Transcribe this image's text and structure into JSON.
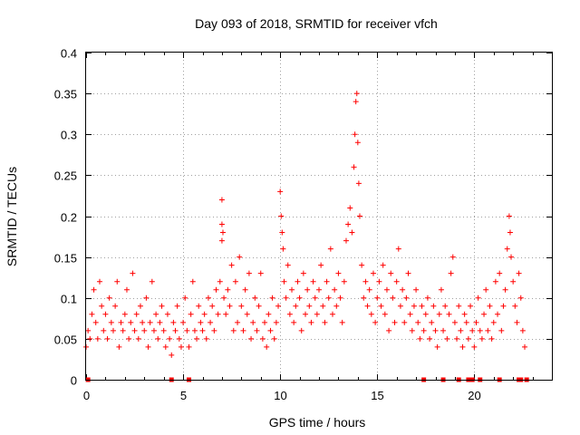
{
  "chart_data": {
    "type": "scatter",
    "title": "Day 093 of 2018, SRMTID for receiver vfch",
    "xlabel": "GPS time / hours",
    "ylabel": "SRMTID / TECUs",
    "xlim": [
      0,
      24
    ],
    "ylim": [
      0,
      0.4
    ],
    "grid": true,
    "x_ticks": [
      0,
      5,
      10,
      15,
      20
    ],
    "x_tick_labels": [
      "0",
      "5",
      "10",
      "15",
      "20"
    ],
    "y_ticks": [
      0,
      0.05,
      0.1,
      0.15,
      0.2,
      0.25,
      0.3,
      0.35,
      0.4
    ],
    "y_tick_labels": [
      "0",
      "0.05",
      "0.1",
      "0.15",
      "0.2",
      "0.25",
      "0.3",
      "0.35",
      "0.4"
    ],
    "marker": "plus",
    "color": "#ff0000",
    "series": [
      {
        "name": "SRMTID",
        "points": [
          [
            0.0,
            0.04
          ],
          [
            0.1,
            0.06
          ],
          [
            0.2,
            0.05
          ],
          [
            0.3,
            0.08
          ],
          [
            0.4,
            0.11
          ],
          [
            0.5,
            0.07
          ],
          [
            0.6,
            0.05
          ],
          [
            0.7,
            0.12
          ],
          [
            0.8,
            0.09
          ],
          [
            0.9,
            0.06
          ],
          [
            1.0,
            0.08
          ],
          [
            1.1,
            0.05
          ],
          [
            1.2,
            0.1
          ],
          [
            1.3,
            0.07
          ],
          [
            1.4,
            0.06
          ],
          [
            1.5,
            0.09
          ],
          [
            1.6,
            0.12
          ],
          [
            1.7,
            0.04
          ],
          [
            1.8,
            0.07
          ],
          [
            1.9,
            0.06
          ],
          [
            2.0,
            0.08
          ],
          [
            2.1,
            0.11
          ],
          [
            2.2,
            0.05
          ],
          [
            2.3,
            0.07
          ],
          [
            2.4,
            0.13
          ],
          [
            2.5,
            0.06
          ],
          [
            2.6,
            0.08
          ],
          [
            2.7,
            0.05
          ],
          [
            2.8,
            0.09
          ],
          [
            2.9,
            0.07
          ],
          [
            3.0,
            0.06
          ],
          [
            3.1,
            0.1
          ],
          [
            3.2,
            0.04
          ],
          [
            3.3,
            0.07
          ],
          [
            3.4,
            0.12
          ],
          [
            3.5,
            0.06
          ],
          [
            3.6,
            0.08
          ],
          [
            3.7,
            0.05
          ],
          [
            3.8,
            0.07
          ],
          [
            3.9,
            0.09
          ],
          [
            4.0,
            0.06
          ],
          [
            4.1,
            0.04
          ],
          [
            4.2,
            0.08
          ],
          [
            4.3,
            0.05
          ],
          [
            4.4,
            0.03
          ],
          [
            4.5,
            0.07
          ],
          [
            4.6,
            0.06
          ],
          [
            4.7,
            0.09
          ],
          [
            4.8,
            0.05
          ],
          [
            4.9,
            0.04
          ],
          [
            5.0,
            0.07
          ],
          [
            5.1,
            0.1
          ],
          [
            5.2,
            0.06
          ],
          [
            5.3,
            0.04
          ],
          [
            5.4,
            0.08
          ],
          [
            5.5,
            0.12
          ],
          [
            5.6,
            0.06
          ],
          [
            5.7,
            0.05
          ],
          [
            5.8,
            0.09
          ],
          [
            5.9,
            0.07
          ],
          [
            6.0,
            0.06
          ],
          [
            6.1,
            0.08
          ],
          [
            6.2,
            0.05
          ],
          [
            6.3,
            0.1
          ],
          [
            6.4,
            0.07
          ],
          [
            6.5,
            0.09
          ],
          [
            6.6,
            0.06
          ],
          [
            6.7,
            0.11
          ],
          [
            6.8,
            0.08
          ],
          [
            6.9,
            0.12
          ],
          [
            7.0,
            0.22
          ],
          [
            7.0,
            0.19
          ],
          [
            7.0,
            0.17
          ],
          [
            7.05,
            0.18
          ],
          [
            7.1,
            0.1
          ],
          [
            7.2,
            0.08
          ],
          [
            7.3,
            0.11
          ],
          [
            7.4,
            0.09
          ],
          [
            7.5,
            0.14
          ],
          [
            7.6,
            0.06
          ],
          [
            7.7,
            0.12
          ],
          [
            7.8,
            0.07
          ],
          [
            7.9,
            0.15
          ],
          [
            8.0,
            0.09
          ],
          [
            8.1,
            0.06
          ],
          [
            8.2,
            0.11
          ],
          [
            8.3,
            0.08
          ],
          [
            8.4,
            0.13
          ],
          [
            8.5,
            0.05
          ],
          [
            8.6,
            0.07
          ],
          [
            8.7,
            0.1
          ],
          [
            8.8,
            0.06
          ],
          [
            8.9,
            0.09
          ],
          [
            9.0,
            0.13
          ],
          [
            9.1,
            0.05
          ],
          [
            9.2,
            0.07
          ],
          [
            9.3,
            0.04
          ],
          [
            9.4,
            0.08
          ],
          [
            9.5,
            0.06
          ],
          [
            9.6,
            0.1
          ],
          [
            9.7,
            0.05
          ],
          [
            9.8,
            0.07
          ],
          [
            9.9,
            0.09
          ],
          [
            10.0,
            0.23
          ],
          [
            10.05,
            0.2
          ],
          [
            10.1,
            0.18
          ],
          [
            10.15,
            0.16
          ],
          [
            10.2,
            0.12
          ],
          [
            10.3,
            0.1
          ],
          [
            10.4,
            0.14
          ],
          [
            10.5,
            0.08
          ],
          [
            10.6,
            0.11
          ],
          [
            10.7,
            0.07
          ],
          [
            10.8,
            0.09
          ],
          [
            10.9,
            0.12
          ],
          [
            11.0,
            0.1
          ],
          [
            11.1,
            0.06
          ],
          [
            11.2,
            0.13
          ],
          [
            11.3,
            0.08
          ],
          [
            11.4,
            0.11
          ],
          [
            11.5,
            0.09
          ],
          [
            11.6,
            0.07
          ],
          [
            11.7,
            0.12
          ],
          [
            11.8,
            0.1
          ],
          [
            11.9,
            0.08
          ],
          [
            12.0,
            0.11
          ],
          [
            12.1,
            0.14
          ],
          [
            12.2,
            0.09
          ],
          [
            12.3,
            0.07
          ],
          [
            12.4,
            0.12
          ],
          [
            12.5,
            0.1
          ],
          [
            12.6,
            0.16
          ],
          [
            12.7,
            0.08
          ],
          [
            12.8,
            0.11
          ],
          [
            12.9,
            0.09
          ],
          [
            13.0,
            0.13
          ],
          [
            13.1,
            0.1
          ],
          [
            13.2,
            0.07
          ],
          [
            13.3,
            0.12
          ],
          [
            13.4,
            0.17
          ],
          [
            13.5,
            0.19
          ],
          [
            13.6,
            0.21
          ],
          [
            13.7,
            0.18
          ],
          [
            13.8,
            0.26
          ],
          [
            13.85,
            0.3
          ],
          [
            13.9,
            0.34
          ],
          [
            13.95,
            0.35
          ],
          [
            14.0,
            0.29
          ],
          [
            14.05,
            0.24
          ],
          [
            14.1,
            0.2
          ],
          [
            14.2,
            0.14
          ],
          [
            14.3,
            0.1
          ],
          [
            14.4,
            0.12
          ],
          [
            14.5,
            0.09
          ],
          [
            14.6,
            0.11
          ],
          [
            14.7,
            0.08
          ],
          [
            14.8,
            0.13
          ],
          [
            14.9,
            0.07
          ],
          [
            15.0,
            0.1
          ],
          [
            15.1,
            0.12
          ],
          [
            15.2,
            0.09
          ],
          [
            15.3,
            0.14
          ],
          [
            15.4,
            0.08
          ],
          [
            15.5,
            0.11
          ],
          [
            15.6,
            0.06
          ],
          [
            15.7,
            0.13
          ],
          [
            15.8,
            0.1
          ],
          [
            15.9,
            0.07
          ],
          [
            16.0,
            0.12
          ],
          [
            16.1,
            0.16
          ],
          [
            16.2,
            0.09
          ],
          [
            16.3,
            0.11
          ],
          [
            16.4,
            0.07
          ],
          [
            16.5,
            0.1
          ],
          [
            16.6,
            0.13
          ],
          [
            16.7,
            0.08
          ],
          [
            16.8,
            0.06
          ],
          [
            16.9,
            0.09
          ],
          [
            17.0,
            0.11
          ],
          [
            17.1,
            0.07
          ],
          [
            17.2,
            0.05
          ],
          [
            17.3,
            0.09
          ],
          [
            17.4,
            0.06
          ],
          [
            17.5,
            0.08
          ],
          [
            17.6,
            0.1
          ],
          [
            17.7,
            0.05
          ],
          [
            17.8,
            0.07
          ],
          [
            17.9,
            0.09
          ],
          [
            18.0,
            0.06
          ],
          [
            18.1,
            0.04
          ],
          [
            18.2,
            0.08
          ],
          [
            18.3,
            0.11
          ],
          [
            18.4,
            0.06
          ],
          [
            18.5,
            0.09
          ],
          [
            18.6,
            0.05
          ],
          [
            18.7,
            0.08
          ],
          [
            18.8,
            0.13
          ],
          [
            18.9,
            0.15
          ],
          [
            19.0,
            0.07
          ],
          [
            19.1,
            0.05
          ],
          [
            19.2,
            0.09
          ],
          [
            19.3,
            0.06
          ],
          [
            19.4,
            0.04
          ],
          [
            19.5,
            0.08
          ],
          [
            19.6,
            0.07
          ],
          [
            19.7,
            0.05
          ],
          [
            19.8,
            0.09
          ],
          [
            19.9,
            0.06
          ],
          [
            20.0,
            0.04
          ],
          [
            20.1,
            0.07
          ],
          [
            20.2,
            0.1
          ],
          [
            20.3,
            0.06
          ],
          [
            20.4,
            0.05
          ],
          [
            20.5,
            0.08
          ],
          [
            20.6,
            0.11
          ],
          [
            20.7,
            0.06
          ],
          [
            20.8,
            0.09
          ],
          [
            20.9,
            0.05
          ],
          [
            21.0,
            0.07
          ],
          [
            21.1,
            0.12
          ],
          [
            21.2,
            0.08
          ],
          [
            21.3,
            0.13
          ],
          [
            21.4,
            0.06
          ],
          [
            21.5,
            0.09
          ],
          [
            21.6,
            0.11
          ],
          [
            21.7,
            0.16
          ],
          [
            21.8,
            0.2
          ],
          [
            21.85,
            0.18
          ],
          [
            21.9,
            0.15
          ],
          [
            22.0,
            0.12
          ],
          [
            22.1,
            0.09
          ],
          [
            22.2,
            0.07
          ],
          [
            22.3,
            0.13
          ],
          [
            22.4,
            0.1
          ],
          [
            22.5,
            0.06
          ],
          [
            22.6,
            0.04
          ]
        ]
      }
    ],
    "zero_points_x": [
      0.1,
      4.4,
      5.3,
      17.4,
      18.4,
      19.2,
      19.7,
      19.8,
      19.9,
      20.3,
      21.3,
      22.3,
      22.4,
      22.7
    ]
  }
}
